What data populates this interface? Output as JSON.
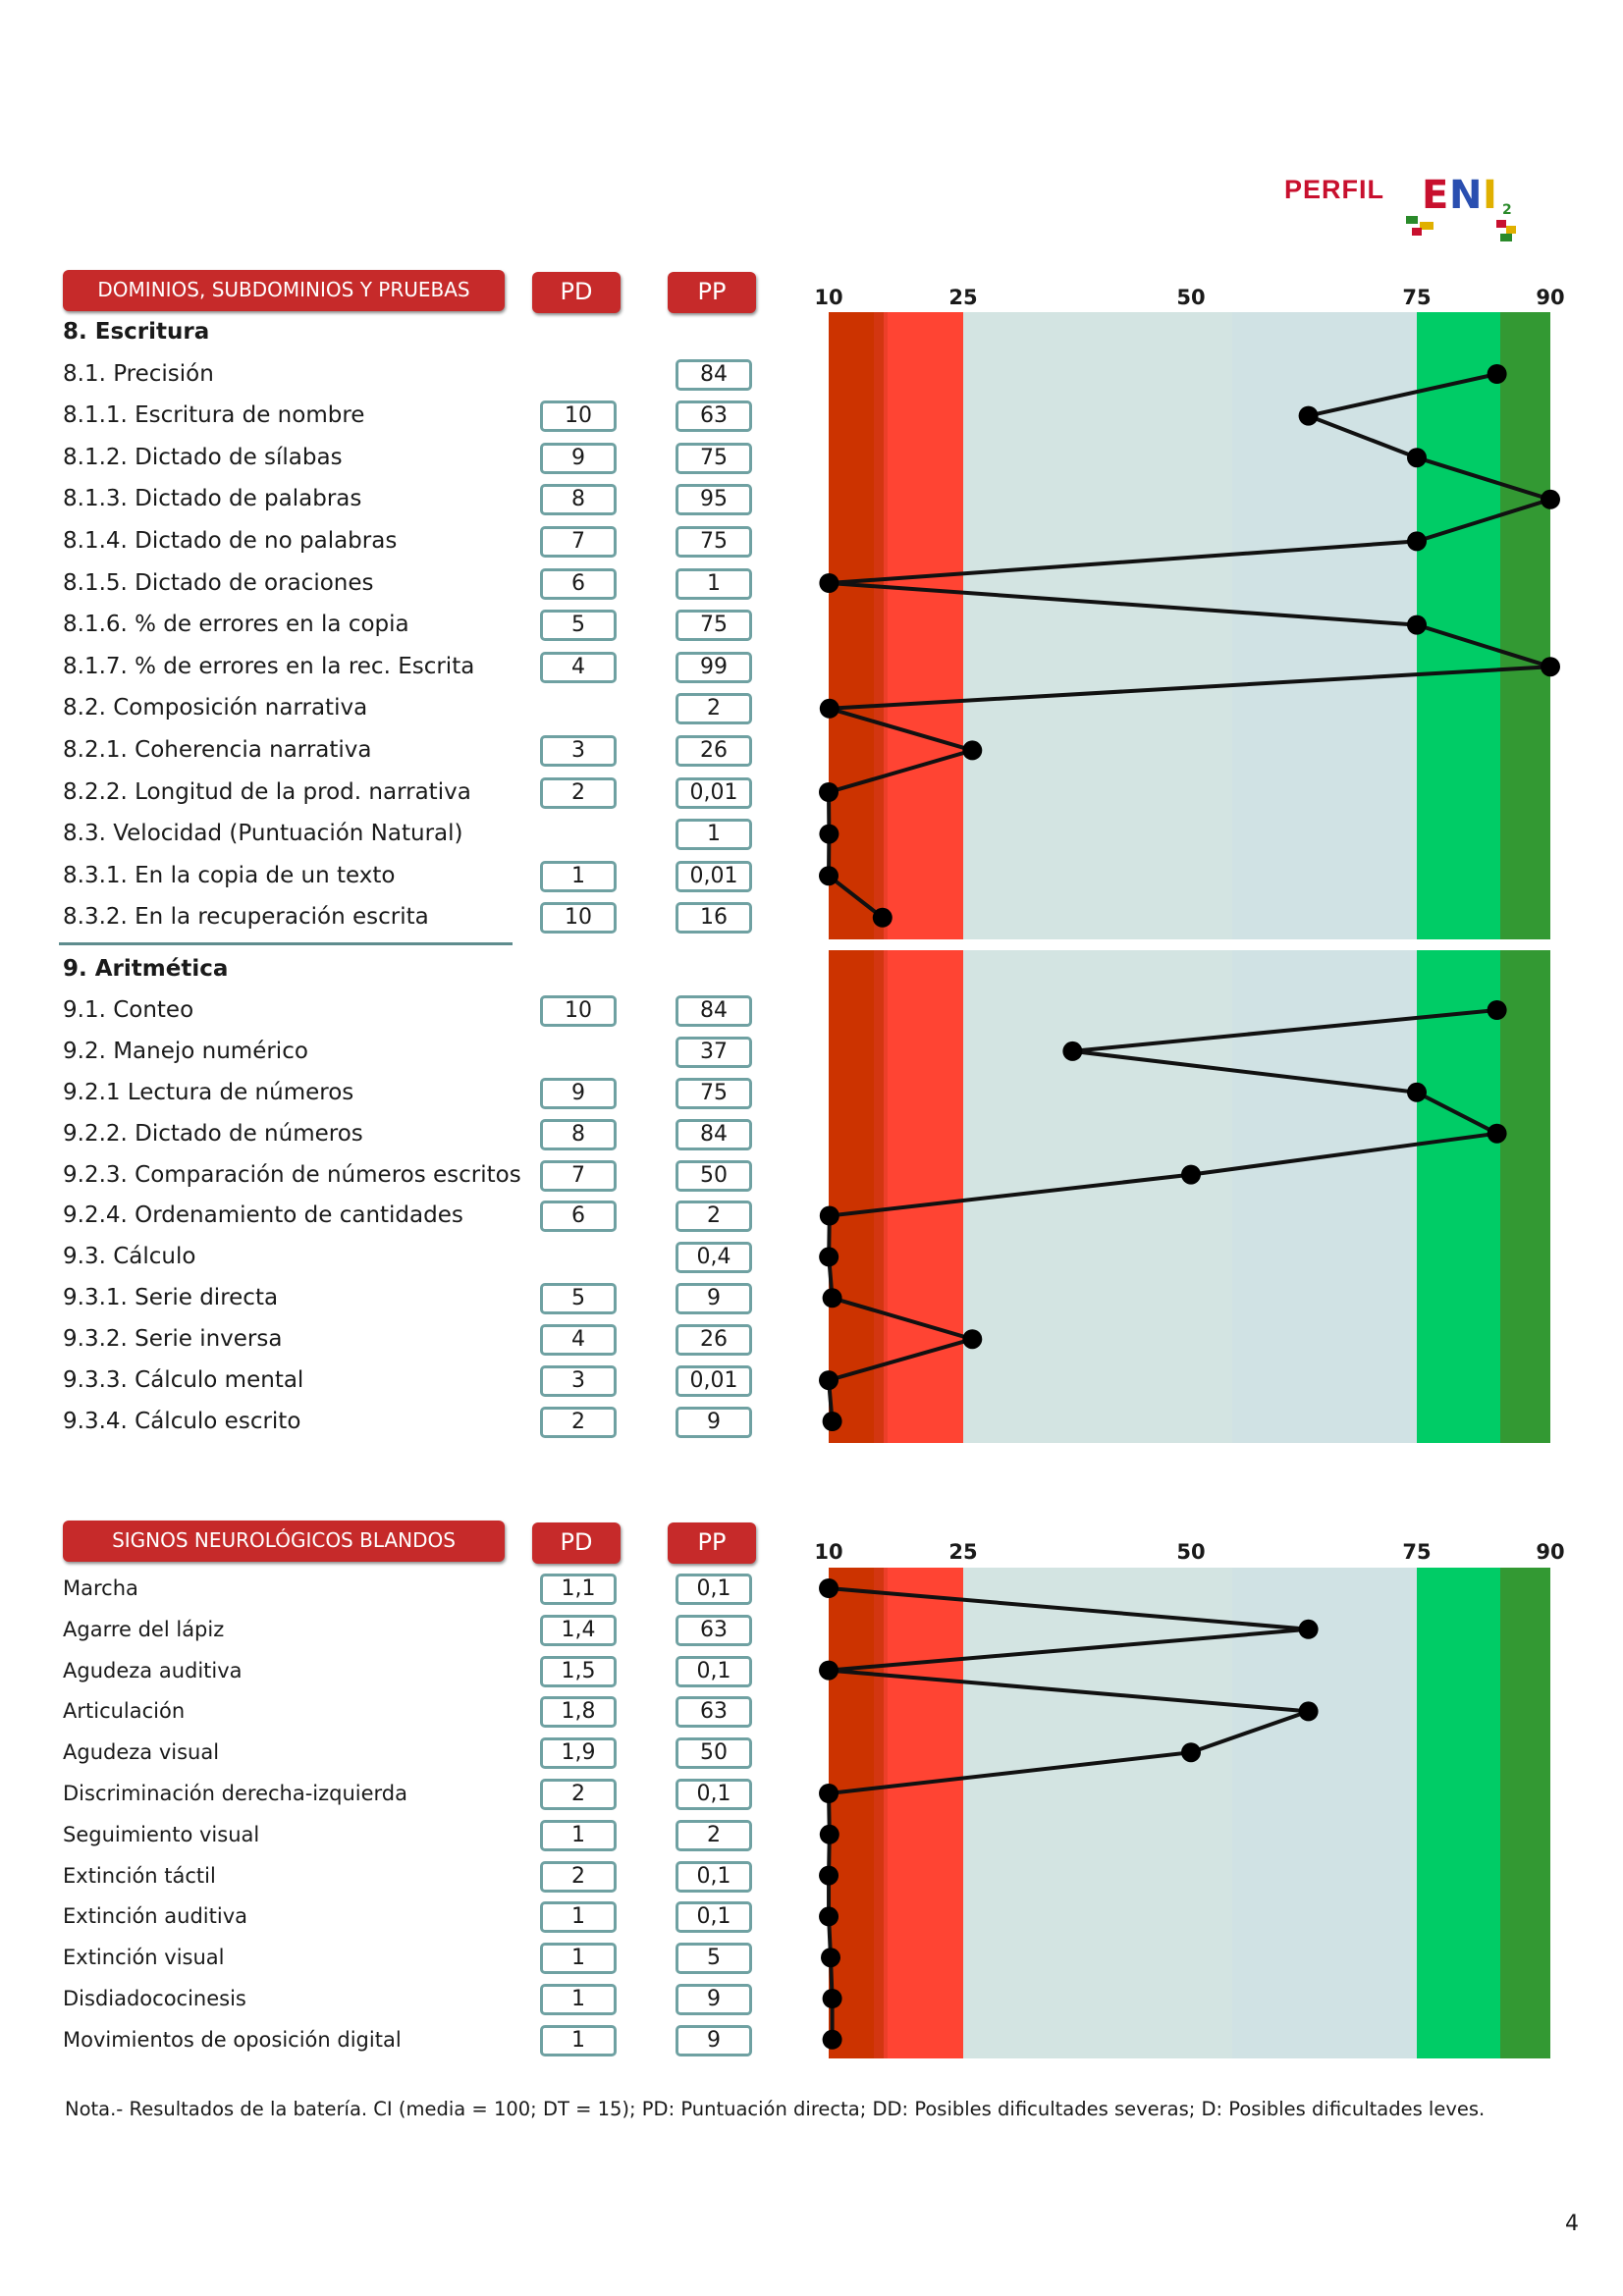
{
  "header": {
    "perfil": "PERFIL",
    "logo_text": "ENI",
    "logo_sup": "2"
  },
  "table1": {
    "header": "DOMINIOS, SUBDOMINIOS Y PRUEBAS",
    "pd_label": "PD",
    "pp_label": "PP"
  },
  "table2": {
    "header": "SIGNOS NEUROLÓGICOS BLANDOS",
    "pd_label": "PD",
    "pp_label": "PP"
  },
  "axis_ticks": [
    "10",
    "25",
    "50",
    "75",
    "90"
  ],
  "colors": {
    "header_red": "#c62a2a",
    "band_dark_red": "#cc3300",
    "band_red": "#ff4433",
    "band_light": "#d3e4e2",
    "band_light2": "#d0e2e4",
    "band_green": "#00cc66",
    "band_dark_green": "#339933",
    "box_border": "#6fa1a2"
  },
  "rows1": [
    {
      "label": "8. Escritura",
      "pd": "",
      "pp": "",
      "bold": true
    },
    {
      "label": "8.1. Precisión",
      "pd": "",
      "pp": "84"
    },
    {
      "label": "8.1.1. Escritura de nombre",
      "pd": "10",
      "pp": "63"
    },
    {
      "label": "8.1.2. Dictado de sílabas",
      "pd": "9",
      "pp": "75"
    },
    {
      "label": "8.1.3. Dictado de palabras",
      "pd": "8",
      "pp": "95"
    },
    {
      "label": "8.1.4. Dictado de no palabras",
      "pd": "7",
      "pp": "75"
    },
    {
      "label": "8.1.5. Dictado de oraciones",
      "pd": "6",
      "pp": "1"
    },
    {
      "label": "8.1.6. % de errores en la copia",
      "pd": "5",
      "pp": "75"
    },
    {
      "label": "8.1.7. % de errores en la rec. Escrita",
      "pd": "4",
      "pp": "99"
    },
    {
      "label": "8.2. Composición narrativa",
      "pd": "",
      "pp": "2"
    },
    {
      "label": "8.2.1. Coherencia narrativa",
      "pd": "3",
      "pp": "26"
    },
    {
      "label": "8.2.2. Longitud de la prod. narrativa",
      "pd": "2",
      "pp": "0,01"
    },
    {
      "label": "8.3. Velocidad  (Puntuación Natural)",
      "pd": "",
      "pp": "1"
    },
    {
      "label": "8.3.1. En la copia de un texto",
      "pd": "1",
      "pp": "0,01"
    },
    {
      "label": "8.3.2. En la recuperación escrita",
      "pd": "10",
      "pp": "16"
    }
  ],
  "rows2": [
    {
      "label": "9. Aritmética",
      "pd": "",
      "pp": "",
      "bold": true
    },
    {
      "label": "9.1. Conteo",
      "pd": "10",
      "pp": "84"
    },
    {
      "label": "9.2. Manejo numérico",
      "pd": "",
      "pp": "37"
    },
    {
      "label": "9.2.1 Lectura de números",
      "pd": "9",
      "pp": "75"
    },
    {
      "label": "9.2.2. Dictado de números",
      "pd": "8",
      "pp": "84"
    },
    {
      "label": "9.2.3. Comparación de números escritos",
      "pd": "7",
      "pp": "50"
    },
    {
      "label": "9.2.4. Ordenamiento de cantidades",
      "pd": "6",
      "pp": "2"
    },
    {
      "label": "9.3. Cálculo",
      "pd": "",
      "pp": "0,4"
    },
    {
      "label": "9.3.1. Serie directa",
      "pd": "5",
      "pp": "9"
    },
    {
      "label": "9.3.2. Serie inversa",
      "pd": "4",
      "pp": "26"
    },
    {
      "label": "9.3.3. Cálculo mental",
      "pd": "3",
      "pp": "0,01"
    },
    {
      "label": "9.3.4. Cálculo escrito",
      "pd": "2",
      "pp": "9"
    }
  ],
  "rows3": [
    {
      "label": "Marcha",
      "pd": "1,1",
      "pp": "0,1"
    },
    {
      "label": "Agarre del lápiz",
      "pd": "1,4",
      "pp": "63"
    },
    {
      "label": "Agudeza auditiva",
      "pd": "1,5",
      "pp": "0,1"
    },
    {
      "label": "Articulación",
      "pd": "1,8",
      "pp": "63"
    },
    {
      "label": "Agudeza  visual",
      "pd": "1,9",
      "pp": "50"
    },
    {
      "label": "Discriminación derecha-izquierda",
      "pd": "2",
      "pp": "0,1"
    },
    {
      "label": "Seguimiento  visual",
      "pd": "1",
      "pp": "2"
    },
    {
      "label": "Extinción  táctil",
      "pd": "2",
      "pp": "0,1"
    },
    {
      "label": "Extinción  auditiva",
      "pd": "1",
      "pp": "0,1"
    },
    {
      "label": "Extinción  visual",
      "pd": "1",
      "pp": "5"
    },
    {
      "label": "Disdiadococinesis",
      "pd": "1",
      "pp": "9"
    },
    {
      "label": "Movimientos de oposición digital",
      "pd": "1",
      "pp": "9"
    }
  ],
  "chart_data": [
    {
      "type": "line",
      "x_ticks": [
        10,
        25,
        50,
        75,
        90
      ],
      "percentiles": [
        84,
        63,
        75,
        95,
        75,
        1,
        75,
        99,
        2,
        26,
        0.01,
        1,
        0.01,
        16
      ]
    },
    {
      "type": "line",
      "x_ticks": [
        10,
        25,
        50,
        75,
        90
      ],
      "percentiles": [
        84,
        37,
        75,
        84,
        50,
        2,
        0.4,
        9,
        26,
        0.01,
        9
      ]
    },
    {
      "type": "line",
      "x_ticks": [
        10,
        25,
        50,
        75,
        90
      ],
      "percentiles": [
        0.1,
        63,
        0.1,
        63,
        50,
        0.1,
        2,
        0.1,
        0.1,
        5,
        9,
        9
      ]
    }
  ],
  "note": "Nota.- Resultados de la batería. CI (media = 100; DT = 15); PD: Puntuación directa; DD: Posibles dificultades severas; D: Posibles dificultades leves.",
  "page_number": "4"
}
